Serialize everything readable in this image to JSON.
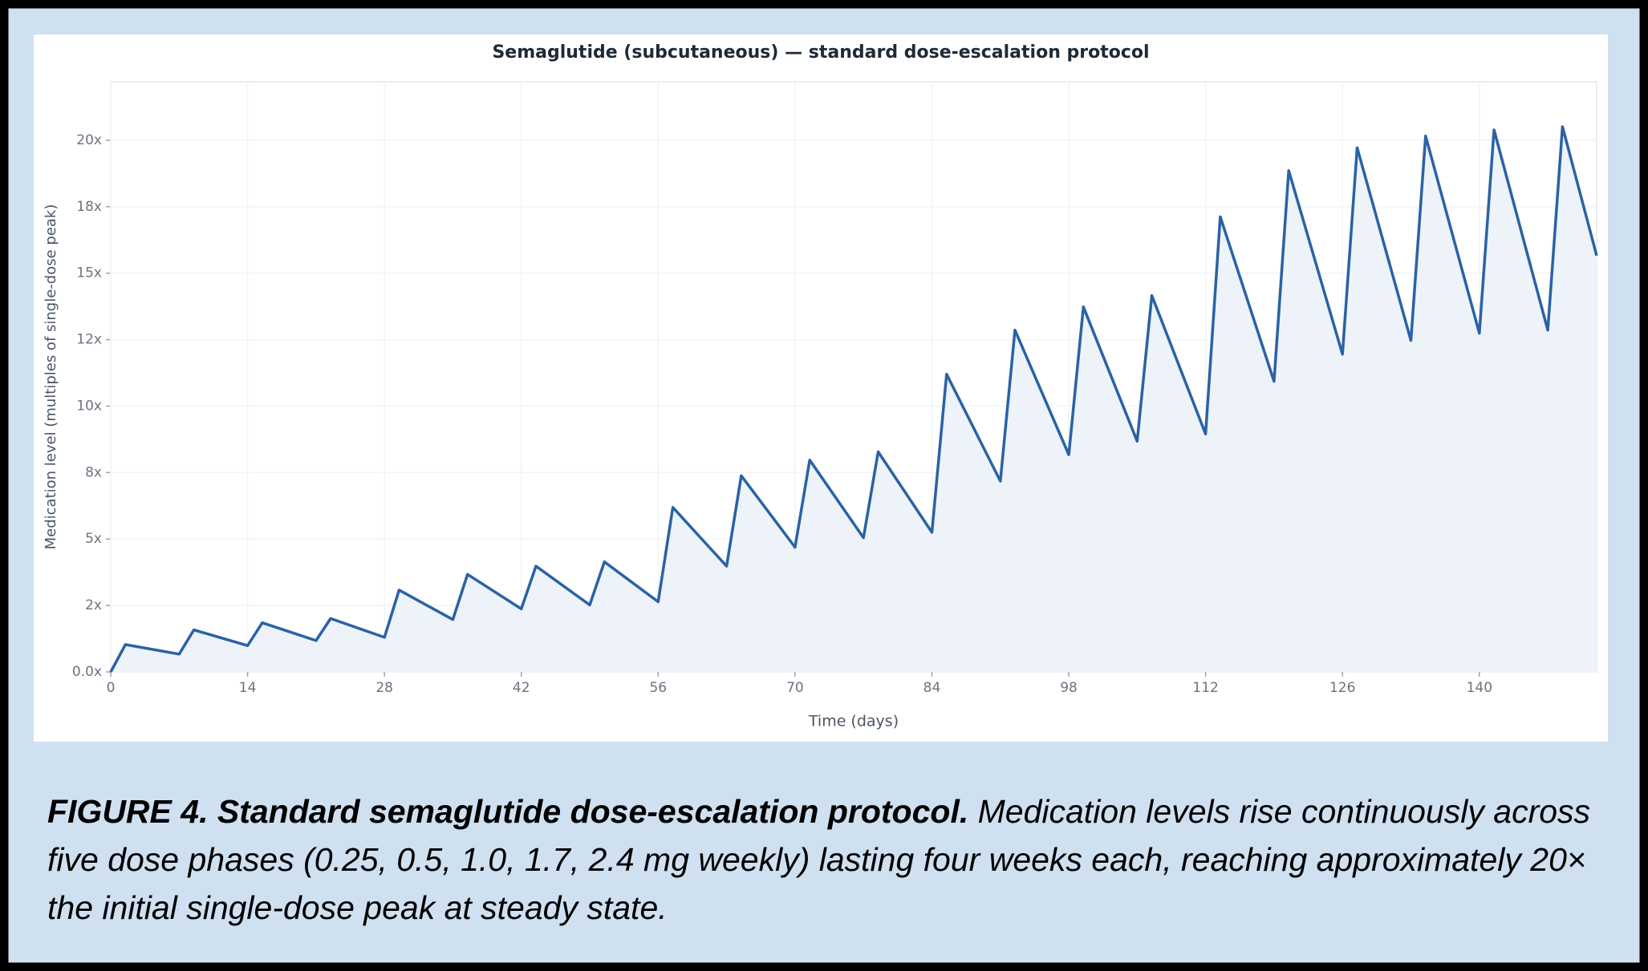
{
  "chart_data": {
    "type": "line",
    "title": "Semaglutide (subcutaneous) — standard dose-escalation protocol",
    "x_label": "Time (days)",
    "y_label": "Medication level (multiples of single-dose peak)",
    "x": [
      0,
      1.5,
      7,
      8.5,
      14,
      15.5,
      21,
      22.5,
      28,
      29.5,
      35,
      36.5,
      42,
      43.5,
      49,
      50.5,
      56,
      57.5,
      63,
      64.5,
      70,
      71.5,
      77,
      78.5,
      84,
      85.5,
      91,
      92.5,
      98,
      99.5,
      105,
      106.5,
      112,
      113.5,
      119,
      120.5,
      126,
      127.5,
      133,
      134.5,
      140,
      141.5,
      147,
      148.5,
      152
    ],
    "series": [
      {
        "name": "Medication level",
        "color": "#2a62a6",
        "values": [
          0,
          1.03,
          0.67,
          1.58,
          0.99,
          1.85,
          1.18,
          2.01,
          1.3,
          3.08,
          1.97,
          3.67,
          2.37,
          3.98,
          2.52,
          4.14,
          2.64,
          6.19,
          3.98,
          7.38,
          4.69,
          7.97,
          5.05,
          8.28,
          5.25,
          11.2,
          7.18,
          12.86,
          8.17,
          13.73,
          8.68,
          14.16,
          8.95,
          17.12,
          10.93,
          18.86,
          11.95,
          19.72,
          12.47,
          20.16,
          12.74,
          20.39,
          12.86,
          20.51,
          15.66
        ]
      }
    ],
    "fill_area": true,
    "area_color": "#eef3f9",
    "xlim": [
      0,
      152
    ],
    "ylim": [
      0,
      22.2
    ],
    "xticks": [
      0,
      14,
      28,
      42,
      56,
      70,
      84,
      98,
      112,
      126,
      140
    ],
    "yticks": [
      {
        "value": 0,
        "label": "0.0x"
      },
      {
        "value": 2.5,
        "label": "2x"
      },
      {
        "value": 5,
        "label": "5x"
      },
      {
        "value": 7.5,
        "label": "8x"
      },
      {
        "value": 10,
        "label": "10x"
      },
      {
        "value": 12.5,
        "label": "12x"
      },
      {
        "value": 15,
        "label": "15x"
      },
      {
        "value": 17.5,
        "label": "18x"
      },
      {
        "value": 20,
        "label": "20x"
      }
    ],
    "grid": true
  },
  "figure_caption": {
    "label": "FIGURE 4. Standard semaglutide dose-escalation protocol.",
    "text": "Medication levels rise continuously across five dose phases (0.25, 0.5, 1.0, 1.7, 2.4 mg weekly) lasting four weeks each, reaching approximately 20× the initial single-dose peak at steady state."
  }
}
